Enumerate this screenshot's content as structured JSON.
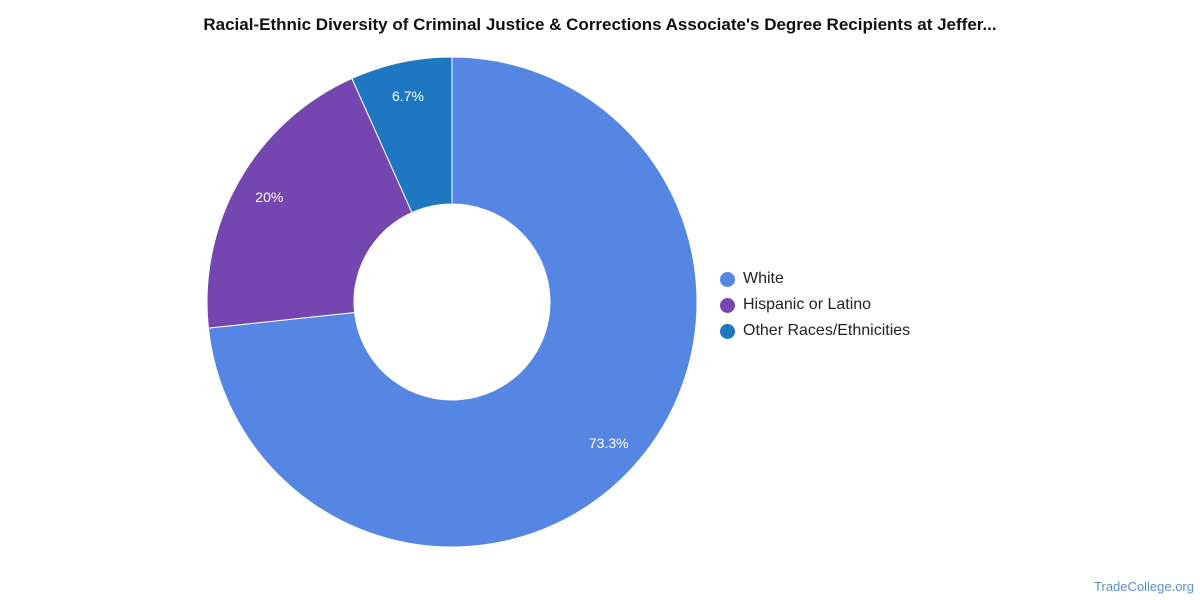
{
  "chart_data": {
    "type": "pie",
    "title": "Racial-Ethnic Diversity of Criminal Justice & Corrections Associate's Degree Recipients at Jeffer...",
    "donut": true,
    "categories": [
      "White",
      "Hispanic or Latino",
      "Other Races/Ethnicities"
    ],
    "values": [
      73.3,
      20,
      6.7
    ],
    "labels": [
      "73.3%",
      "20%",
      "6.7%"
    ],
    "colors": [
      "#5586e3",
      "#7646b0",
      "#1f76c1"
    ],
    "legend_position": "right"
  },
  "watermark": "TradeCollege.org"
}
